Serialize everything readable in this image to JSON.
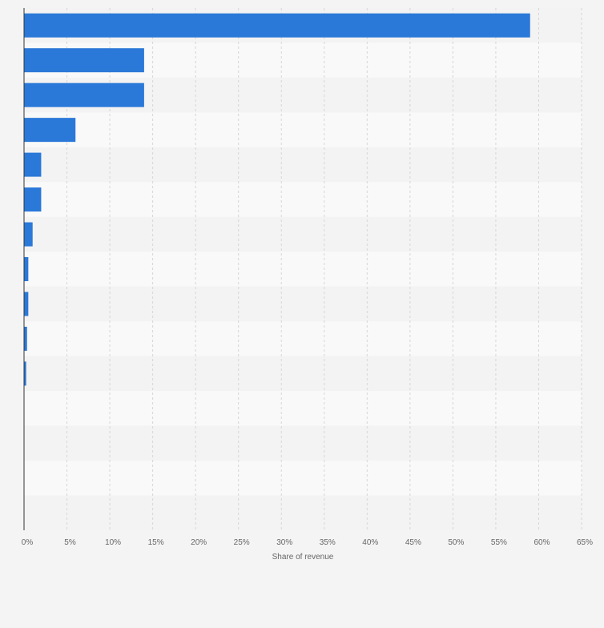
{
  "chart_data": {
    "type": "bar",
    "orientation": "horizontal",
    "title": "",
    "xlabel": "Share of revenue",
    "ylabel": "",
    "xlim": [
      0,
      65
    ],
    "tick_step": 5,
    "tick_suffix": "%",
    "grid": true,
    "legend": "none",
    "bar_color": "#2a78d8",
    "categories": [
      "",
      "",
      "",
      "",
      "",
      "",
      "",
      "",
      "",
      "",
      "",
      "",
      "",
      "",
      ""
    ],
    "values": [
      59,
      14,
      14,
      6,
      2,
      2,
      1,
      0.5,
      0.5,
      0.35,
      0.25,
      0,
      0,
      0,
      0
    ]
  }
}
